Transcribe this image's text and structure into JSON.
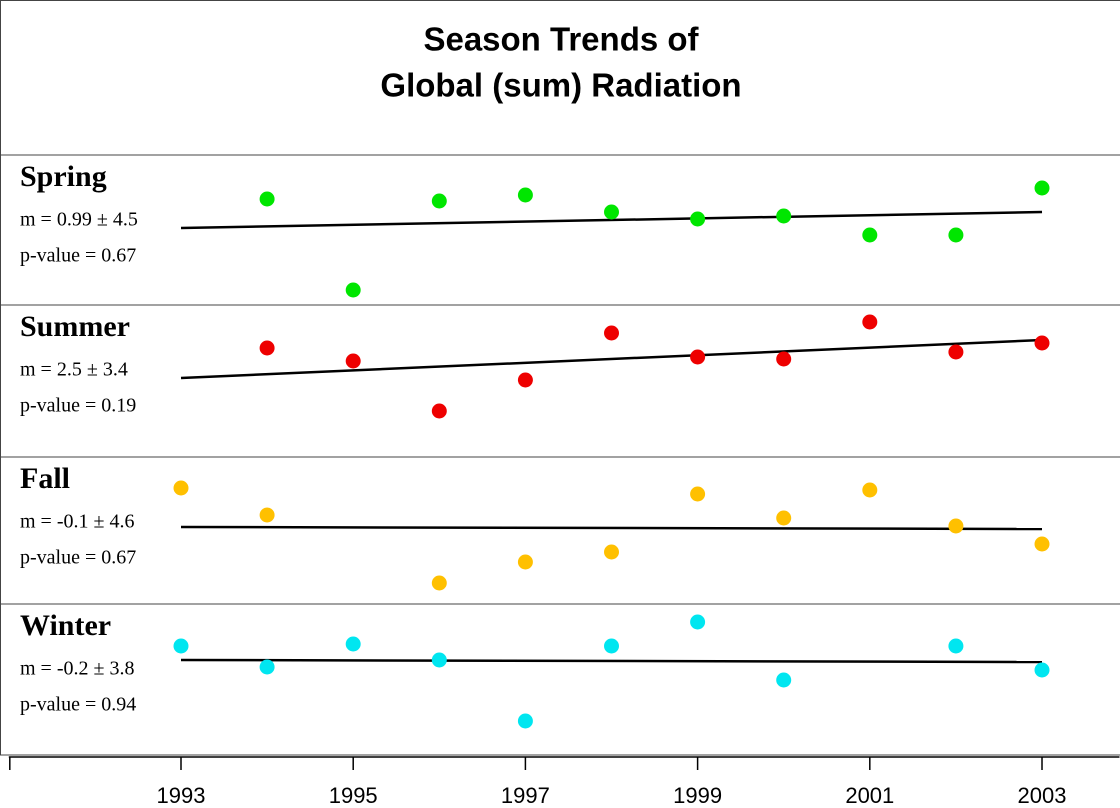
{
  "chart_data": {
    "type": "scatter",
    "title": [
      "Season Trends of",
      "Global (sum) Radiation"
    ],
    "x": [
      1993,
      1994,
      1995,
      1996,
      1997,
      1998,
      1999,
      2000,
      2001,
      2002,
      2003
    ],
    "xlim": [
      1991,
      2003.9
    ],
    "xticks": [
      1993,
      1995,
      1997,
      1999,
      2001,
      2003
    ],
    "panels": [
      {
        "name": "Spring",
        "color": "#00e600",
        "slope": "m = 0.99 ± 4.5",
        "p_value": "p-value = 0.67",
        "ylim": [
          0,
          150
        ],
        "values": [
          null,
          106,
          15,
          104,
          110,
          93,
          86,
          89,
          70,
          70,
          117
        ],
        "trend": [
          77,
          93
        ]
      },
      {
        "name": "Summer",
        "color": "#ee0000",
        "slope": "m = 2.5 ± 3.4",
        "p_value": "p-value = 0.19",
        "ylim": [
          0,
          152
        ],
        "values": [
          null,
          109,
          96,
          46,
          77,
          124,
          100,
          98,
          135,
          105,
          114
        ],
        "trend": [
          79,
          117
        ]
      },
      {
        "name": "Fall",
        "color": "#ffc000",
        "slope": "m = -0.1 ± 4.6",
        "p_value": "p-value = 0.67",
        "ylim": [
          0,
          147
        ],
        "values": [
          116,
          89,
          null,
          21,
          42,
          52,
          110,
          86,
          114,
          78,
          60
        ],
        "trend": [
          77,
          75
        ]
      },
      {
        "name": "Winter",
        "color": "#00e6f0",
        "slope": "m = -0.2 ± 3.8",
        "p_value": "p-value = 0.94",
        "ylim": [
          0,
          151
        ],
        "values": [
          109,
          88,
          111,
          95,
          34,
          109,
          133,
          75,
          null,
          109,
          85
        ],
        "trend": [
          95,
          93
        ]
      }
    ]
  }
}
